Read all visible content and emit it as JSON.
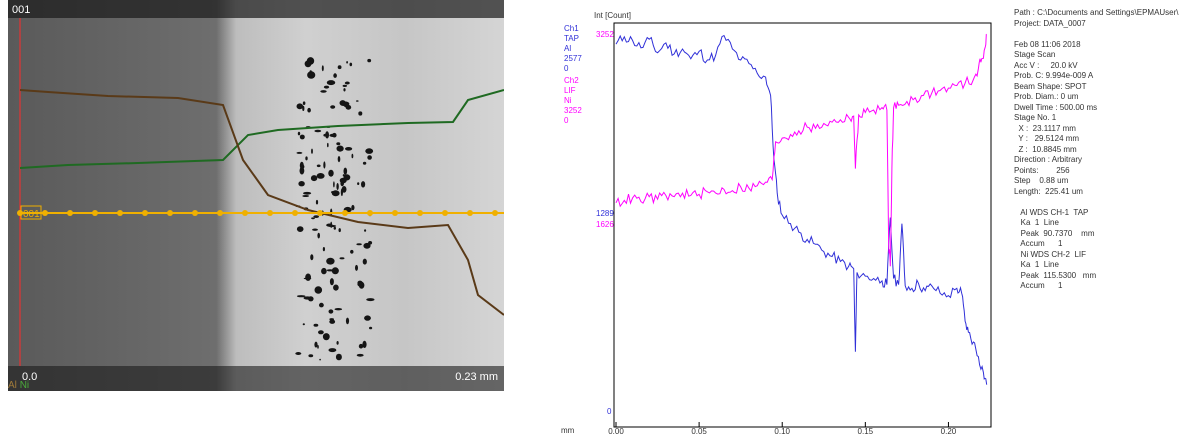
{
  "micrograph": {
    "frame_label": "001",
    "line_label": "001",
    "scale_start": "0.0",
    "scale_end": "0.23 mm",
    "legend_al": "Al",
    "legend_ni": "Ni",
    "colors": {
      "al": "#5a3a18",
      "ni": "#1f6a22",
      "scan_line": "#f0b000",
      "marker": "#ff2a2a"
    }
  },
  "legend": {
    "ch1": "Ch1",
    "ch1_crystal": "TAP",
    "ch1_element": "Al",
    "ch1_max": "2577",
    "ch1_min": "0",
    "ch2": "Ch2",
    "ch2_crystal": "LIF",
    "ch2_element": "Ni",
    "ch2_max": "3252",
    "ch2_min": "0",
    "colors": {
      "ch1": "#3030d8",
      "ch2": "#ff00ff"
    }
  },
  "info_panel": [
    "Path : C:\\Documents and Settings\\EPMAUser\\",
    "Project: DATA_0007",
    "",
    "Feb 08 11:06 2018",
    "Stage Scan",
    "Acc V :     20.0 kV",
    "Prob. C: 9.994e-009 A",
    "Beam Shape: SPOT",
    "Prob. Diam.: 0 um",
    "Dwell Time : 500.00 ms",
    "Stage No. 1",
    "  X :  23.1117 mm",
    "  Y :   29.5124 mm",
    "  Z :  10.8845 mm",
    "Direction : Arbitrary",
    "Points:        256",
    "Step    0.88 um",
    "Length:  225.41 um",
    "",
    "   Al WDS CH-1  TAP",
    "   Ka  1  Line",
    "   Peak  90.7370    mm",
    "   Accum      1",
    "   Ni WDS CH-2  LIF",
    "   Ka  1  Line",
    "   Peak  115.5300   mm",
    "   Accum      1"
  ],
  "chart_data": {
    "type": "line",
    "ylabel": "Int [Count]",
    "xlabel": "mm",
    "xlim": [
      0.0,
      0.225
    ],
    "x_ticks": [
      "0.00",
      "0.05",
      "0.10",
      "0.15",
      "0.20"
    ],
    "y_tick_labels": {
      "top": "3252",
      "mid_ch1": "1289",
      "mid_ch2": "1626",
      "bottom": "0"
    },
    "ylim": [
      0,
      3252
    ],
    "series": [
      {
        "name": "Al",
        "color": "#3030d8",
        "points": [
          [
            0.0,
            3120
          ],
          [
            0.005,
            3180
          ],
          [
            0.01,
            3150
          ],
          [
            0.015,
            3090
          ],
          [
            0.02,
            3160
          ],
          [
            0.025,
            3050
          ],
          [
            0.03,
            3130
          ],
          [
            0.035,
            3040
          ],
          [
            0.04,
            3080
          ],
          [
            0.045,
            3000
          ],
          [
            0.05,
            3060
          ],
          [
            0.055,
            2990
          ],
          [
            0.06,
            3030
          ],
          [
            0.065,
            3190
          ],
          [
            0.07,
            3080
          ],
          [
            0.075,
            2990
          ],
          [
            0.08,
            2960
          ],
          [
            0.085,
            2880
          ],
          [
            0.09,
            2850
          ],
          [
            0.093,
            2700
          ],
          [
            0.095,
            2180
          ],
          [
            0.097,
            1900
          ],
          [
            0.1,
            1720
          ],
          [
            0.105,
            1650
          ],
          [
            0.11,
            1580
          ],
          [
            0.115,
            1520
          ],
          [
            0.12,
            1480
          ],
          [
            0.125,
            1420
          ],
          [
            0.13,
            1380
          ],
          [
            0.135,
            1340
          ],
          [
            0.14,
            1300
          ],
          [
            0.143,
            1280
          ],
          [
            0.144,
            600
          ],
          [
            0.145,
            1250
          ],
          [
            0.15,
            1220
          ],
          [
            0.155,
            1200
          ],
          [
            0.16,
            1180
          ],
          [
            0.163,
            1150
          ],
          [
            0.165,
            1700
          ],
          [
            0.167,
            1200
          ],
          [
            0.17,
            1150
          ],
          [
            0.172,
            1650
          ],
          [
            0.174,
            1140
          ],
          [
            0.178,
            1120
          ],
          [
            0.182,
            1160
          ],
          [
            0.186,
            1100
          ],
          [
            0.19,
            1140
          ],
          [
            0.195,
            1080
          ],
          [
            0.2,
            1060
          ],
          [
            0.205,
            1120
          ],
          [
            0.208,
            1080
          ],
          [
            0.21,
            850
          ],
          [
            0.212,
            760
          ],
          [
            0.215,
            680
          ],
          [
            0.218,
            560
          ],
          [
            0.221,
            430
          ],
          [
            0.223,
            330
          ]
        ]
      },
      {
        "name": "Ni",
        "color": "#ff00ff",
        "points": [
          [
            0.0,
            1820
          ],
          [
            0.005,
            1840
          ],
          [
            0.01,
            1860
          ],
          [
            0.015,
            1830
          ],
          [
            0.02,
            1870
          ],
          [
            0.025,
            1850
          ],
          [
            0.03,
            1880
          ],
          [
            0.035,
            1870
          ],
          [
            0.04,
            1900
          ],
          [
            0.045,
            1880
          ],
          [
            0.05,
            1890
          ],
          [
            0.055,
            1910
          ],
          [
            0.06,
            1900
          ],
          [
            0.065,
            1930
          ],
          [
            0.07,
            1920
          ],
          [
            0.075,
            1950
          ],
          [
            0.08,
            1940
          ],
          [
            0.085,
            1960
          ],
          [
            0.09,
            1990
          ],
          [
            0.094,
            2010
          ],
          [
            0.096,
            2320
          ],
          [
            0.1,
            2350
          ],
          [
            0.105,
            2380
          ],
          [
            0.11,
            2410
          ],
          [
            0.115,
            2440
          ],
          [
            0.12,
            2430
          ],
          [
            0.125,
            2470
          ],
          [
            0.13,
            2480
          ],
          [
            0.135,
            2500
          ],
          [
            0.14,
            2520
          ],
          [
            0.143,
            2530
          ],
          [
            0.144,
            2100
          ],
          [
            0.146,
            2540
          ],
          [
            0.15,
            2560
          ],
          [
            0.155,
            2580
          ],
          [
            0.16,
            2600
          ],
          [
            0.163,
            2580
          ],
          [
            0.164,
            1500
          ],
          [
            0.165,
            1300
          ],
          [
            0.166,
            2100
          ],
          [
            0.167,
            2600
          ],
          [
            0.17,
            2620
          ],
          [
            0.175,
            2650
          ],
          [
            0.18,
            2680
          ],
          [
            0.185,
            2700
          ],
          [
            0.19,
            2720
          ],
          [
            0.195,
            2740
          ],
          [
            0.2,
            2760
          ],
          [
            0.205,
            2780
          ],
          [
            0.21,
            2800
          ],
          [
            0.215,
            2830
          ],
          [
            0.218,
            2920
          ],
          [
            0.22,
            3000
          ],
          [
            0.222,
            3090
          ],
          [
            0.223,
            3200
          ]
        ]
      }
    ]
  }
}
